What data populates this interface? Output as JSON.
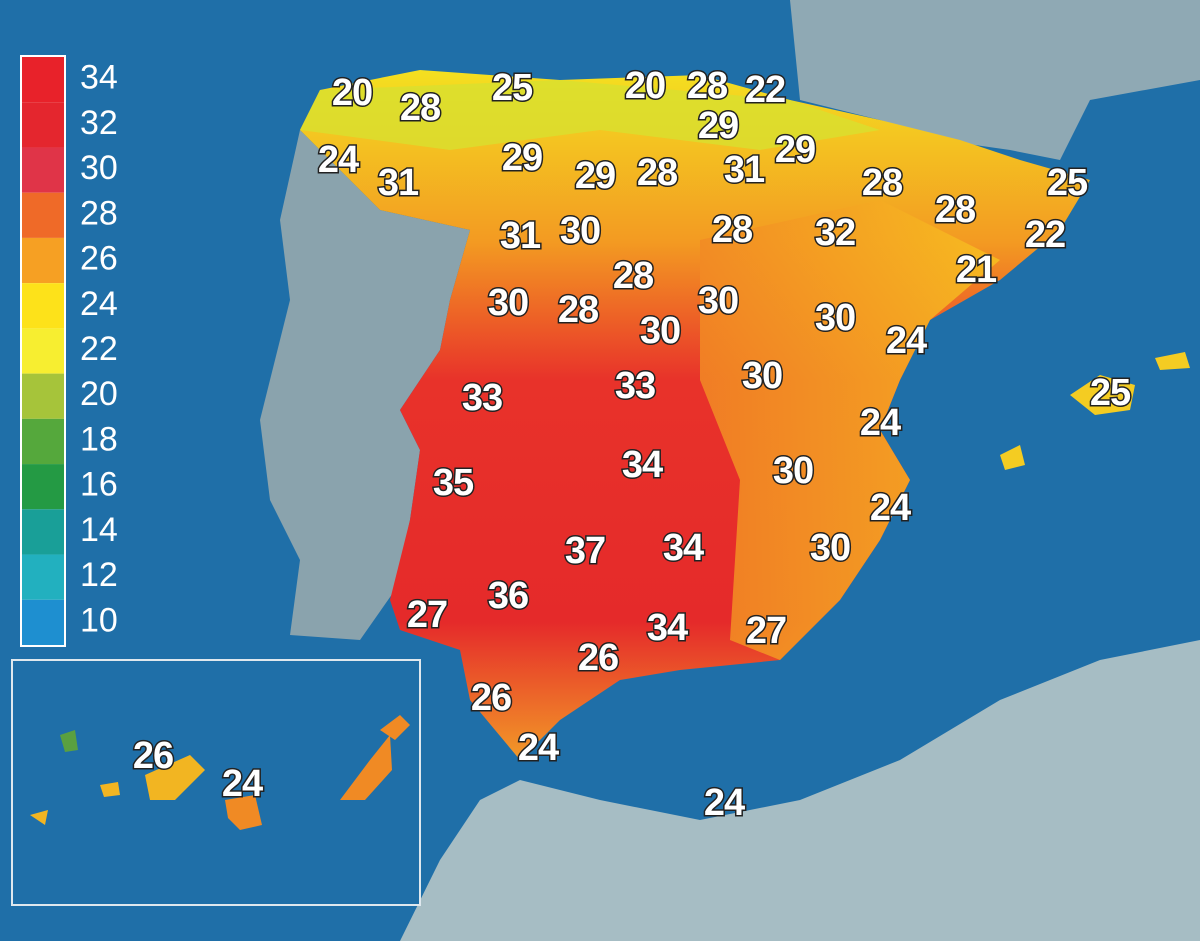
{
  "legend": {
    "items": [
      {
        "value": 34,
        "color": "#e8222a"
      },
      {
        "value": 32,
        "color": "#e4262e"
      },
      {
        "value": 30,
        "color": "#e03448"
      },
      {
        "value": 28,
        "color": "#ef6a28"
      },
      {
        "value": 26,
        "color": "#f6a023"
      },
      {
        "value": 24,
        "color": "#fde21a"
      },
      {
        "value": 22,
        "color": "#f7ee30"
      },
      {
        "value": 20,
        "color": "#a6c43a"
      },
      {
        "value": 18,
        "color": "#55a83c"
      },
      {
        "value": 16,
        "color": "#249a44"
      },
      {
        "value": 14,
        "color": "#199f98"
      },
      {
        "value": 12,
        "color": "#22b0bf"
      },
      {
        "value": 10,
        "color": "#1e8fd0"
      }
    ]
  },
  "labels": [
    20,
    28,
    25,
    20,
    28,
    22,
    29,
    24,
    31,
    29,
    29,
    28,
    31,
    29,
    28,
    25,
    28,
    22,
    31,
    30,
    28,
    32,
    21,
    28,
    30,
    28,
    30,
    30,
    24,
    30,
    33,
    33,
    30,
    25,
    24,
    34,
    30,
    35,
    24,
    37,
    34,
    30,
    27,
    36,
    34,
    27,
    26,
    26,
    24,
    26,
    24,
    24
  ]
}
